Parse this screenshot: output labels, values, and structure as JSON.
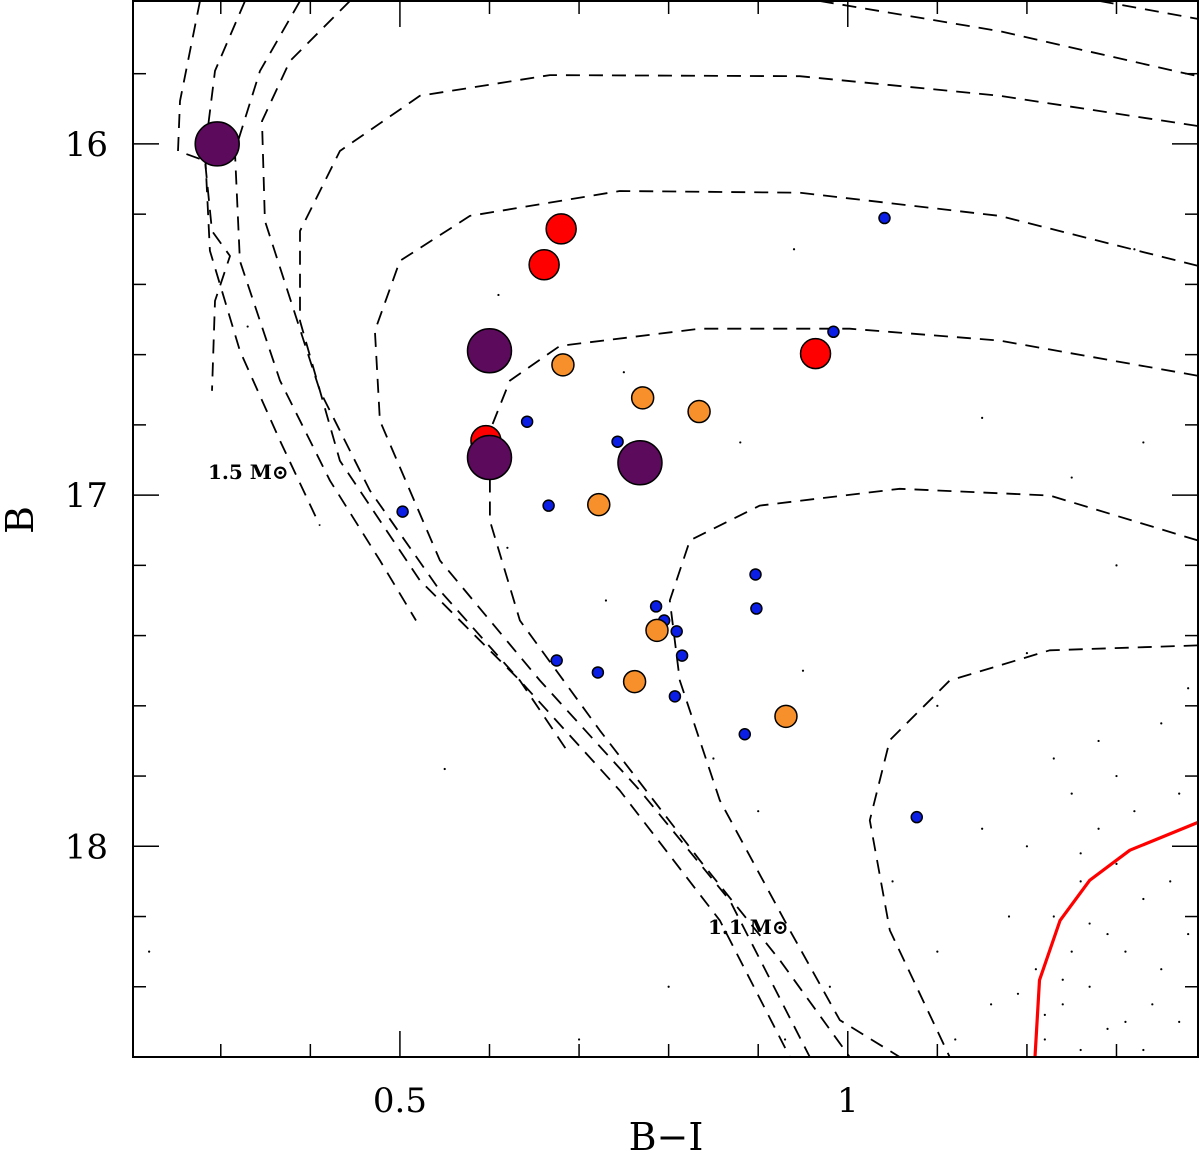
{
  "chart_data": {
    "type": "scatter",
    "xlabel": "B−I",
    "ylabel": "B",
    "xlim": [
      0.202,
      1.391
    ],
    "ylim": [
      15.593,
      18.6
    ],
    "y_inverted": true,
    "xticks": [
      0.5,
      1
    ],
    "xminorticks": [
      0.3,
      0.4,
      0.6,
      0.7,
      0.8,
      0.9,
      1.1,
      1.2,
      1.3
    ],
    "yticks": [
      16,
      17,
      18
    ],
    "yminorticks": [
      15.8,
      16.2,
      16.4,
      16.6,
      16.8,
      17.2,
      17.4,
      17.6,
      17.8,
      18.2,
      18.4
    ],
    "annotations": [
      "1.5 M⊙",
      "1.1 M⊙"
    ],
    "series": [
      {
        "color": "#000000",
        "size": 1.1,
        "x": [
          1.22,
          1.24,
          1.25,
          1.23,
          1.26,
          1.28,
          1.3,
          1.27,
          1.29,
          1.31,
          1.33,
          1.35,
          1.21,
          1.26,
          1.32,
          1.37,
          1.36,
          1.34,
          1.38,
          1.3,
          1.25,
          1.2,
          1.18,
          1.16,
          1.12,
          1.23,
          1.28,
          1.35,
          1.38,
          1.15,
          1.22,
          1.24,
          1.27,
          1.29,
          1.33,
          1.19,
          1.26,
          1.31,
          1.37,
          1.1,
          1.05,
          0.98,
          0.93,
          0.9,
          0.85,
          0.95,
          1.1,
          1.2,
          1.3,
          1.25,
          1.15,
          1.33,
          0.73,
          0.62,
          0.75,
          0.88,
          0.55,
          0.7,
          0.8,
          0.22,
          1.32,
          0.94,
          0.33,
          0.61
        ],
        "values": [
          18.55,
          18.45,
          18.3,
          18.2,
          18.1,
          17.95,
          18.05,
          18.4,
          18.25,
          18.5,
          18.15,
          18.35,
          18.35,
          18.58,
          17.9,
          17.85,
          18.1,
          18.45,
          18.25,
          17.8,
          17.85,
          18.0,
          18.2,
          18.45,
          18.55,
          17.75,
          17.7,
          17.65,
          17.55,
          17.95,
          18.48,
          18.38,
          18.22,
          18.52,
          18.58,
          18.42,
          18.02,
          18.3,
          18.5,
          18.3,
          18.1,
          18.4,
          18.55,
          17.9,
          17.75,
          17.5,
          17.6,
          17.45,
          17.2,
          16.95,
          16.78,
          16.85,
          17.3,
          17.15,
          16.65,
          16.85,
          17.78,
          18.55,
          18.4,
          18.3,
          16.3,
          16.3,
          16.52,
          16.43
        ]
      },
      {
        "color": "#0a1ee6",
        "size": 5.5,
        "x": [
          1.041,
          0.984,
          0.642,
          0.743,
          0.503,
          0.666,
          0.897,
          0.786,
          0.795,
          0.898,
          0.809,
          0.815,
          0.675,
          0.721,
          0.807,
          0.885,
          1.077
        ],
        "values": [
          16.211,
          16.535,
          16.791,
          16.848,
          17.047,
          17.03,
          17.226,
          17.317,
          17.357,
          17.323,
          17.388,
          17.457,
          17.471,
          17.505,
          17.573,
          17.681,
          17.917
        ]
      },
      {
        "color": "#f7902a",
        "size": 11,
        "x": [
          0.682,
          0.771,
          0.834,
          0.722,
          0.787,
          0.762,
          0.931
        ],
        "values": [
          16.629,
          16.723,
          16.762,
          17.027,
          17.385,
          17.531,
          17.63
        ]
      },
      {
        "color": "#ff0000",
        "size": 15,
        "x": [
          0.68,
          0.661,
          0.964,
          0.596
        ],
        "values": [
          16.242,
          16.344,
          16.597,
          16.845
        ]
      },
      {
        "color": "#5c0a5c",
        "size": 22,
        "x": [
          0.296,
          0.6,
          0.6,
          0.768
        ],
        "values": [
          16.0,
          16.589,
          16.893,
          16.908
        ]
      }
    ],
    "lines": [
      {
        "color": "#000000",
        "dashed": true,
        "x": [
          0.2768,
          0.2545,
          0.2522,
          0.2824,
          0.2902,
          0.3103,
          0.2935,
          0.2902
        ],
        "y": [
          15.593,
          15.878,
          16.02,
          16.048,
          16.248,
          16.319,
          16.447,
          16.703
        ]
      },
      {
        "color": "#000000",
        "dashed": true,
        "x": [
          0.327,
          0.2935,
          0.2824,
          0.2879,
          0.3214,
          0.3661,
          0.4107
        ],
        "y": [
          15.593,
          15.792,
          16.02,
          16.304,
          16.589,
          16.845,
          17.087
        ]
      },
      {
        "color": "#000000",
        "dashed": true,
        "x": [
          0.3884,
          0.3438,
          0.3158,
          0.3214,
          0.3661,
          0.4219,
          0.4777,
          0.5179
        ],
        "y": [
          15.593,
          15.792,
          16.02,
          16.333,
          16.674,
          16.959,
          17.186,
          17.357
        ]
      },
      {
        "color": "#000000",
        "dashed": true,
        "x": [
          0.4442,
          0.3772,
          0.346,
          0.3493,
          0.4107,
          0.4665,
          0.5446,
          0.6339,
          0.6864
        ],
        "y": [
          15.593,
          15.764,
          15.935,
          16.219,
          16.703,
          16.987,
          17.272,
          17.528,
          17.727
        ]
      },
      {
        "color": "#000000",
        "dashed": true,
        "x": [
          1.3907,
          1.1696,
          0.9464,
          0.6674,
          0.5223,
          0.433,
          0.3884,
          0.3884,
          0.433,
          0.5223,
          0.6339,
          0.7455,
          0.8571,
          0.9353
        ],
        "y": [
          15.949,
          15.863,
          15.807,
          15.804,
          15.863,
          16.02,
          16.248,
          16.504,
          16.902,
          17.243,
          17.528,
          17.841,
          18.211,
          18.6
        ]
      },
      {
        "color": "#000000",
        "dashed": true,
        "x": [
          1.3907,
          1.1696,
          0.9464,
          0.7455,
          0.5781,
          0.5,
          0.4721,
          0.4777,
          0.5446,
          0.6563,
          0.7679,
          0.8683,
          0.9576
        ],
        "y": [
          16.347,
          16.205,
          16.139,
          16.134,
          16.205,
          16.333,
          16.532,
          16.788,
          17.186,
          17.528,
          17.841,
          18.154,
          18.6
        ]
      },
      {
        "color": "#000000",
        "dashed": true,
        "x": [
          1.3907,
          1.1696,
          1.0022,
          0.8348,
          0.6786,
          0.6228,
          0.6004,
          0.6004,
          0.6339,
          0.7232,
          0.8348,
          0.9241,
          1.0022
        ],
        "y": [
          16.66,
          16.56,
          16.526,
          16.526,
          16.575,
          16.674,
          16.817,
          17.073,
          17.357,
          17.67,
          18.04,
          18.324,
          18.6
        ]
      },
      {
        "color": "#000000",
        "dashed": true,
        "x": [
          1.3907,
          1.2254,
          1.058,
          0.9018,
          0.8237,
          0.8013,
          0.8125,
          0.8571,
          0.9353,
          0.9911,
          1.058
        ],
        "y": [
          17.129,
          17.001,
          16.982,
          17.03,
          17.129,
          17.3,
          17.528,
          17.869,
          18.239,
          18.495,
          18.6
        ]
      },
      {
        "color": "#000000",
        "dashed": true,
        "x": [
          1.3907,
          1.2254,
          1.1138,
          1.0469,
          1.0246,
          1.0469,
          1.1138
        ],
        "y": [
          17.428,
          17.442,
          17.528,
          17.698,
          17.926,
          18.239,
          18.6
        ]
      },
      {
        "color": "#000000",
        "dashed": true,
        "x": [
          0.9688,
          1.1696,
          1.3907
        ],
        "y": [
          15.593,
          15.679,
          15.807
        ]
      },
      {
        "color": "#000000",
        "dashed": true,
        "x": [
          1.2813,
          1.3907
        ],
        "y": [
          15.593,
          15.644
        ]
      },
      {
        "color": "#ff0000",
        "dashed": false,
        "x": [
          1.209,
          1.214,
          1.237,
          1.27,
          1.315,
          1.391
        ],
        "y": [
          18.6,
          18.381,
          18.211,
          18.097,
          18.011,
          17.932
        ]
      }
    ]
  }
}
